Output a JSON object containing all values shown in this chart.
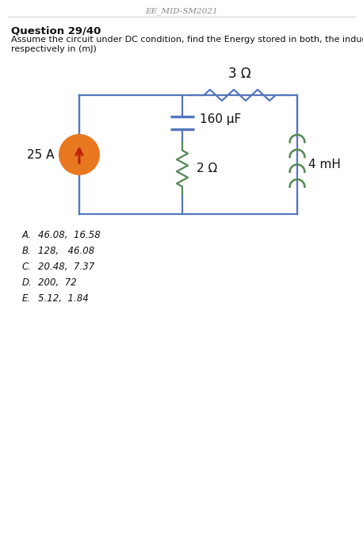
{
  "header": "EE_MID-SM2021",
  "question": "Question 29/40",
  "desc_line1": "Assume the circuit under DC condition, find the Energy stored in both, the inductor, and the capacitor",
  "desc_line2": "respectively in (mJ)",
  "current_source_label": "25 A",
  "resistor_top_label": "3 Ω",
  "capacitor_label": "160 μF",
  "resistor_mid_label": "2 Ω",
  "inductor_label": "4 mH",
  "choices": [
    [
      "A.",
      "46.08,  16.58"
    ],
    [
      "B.",
      "128,   46.08"
    ],
    [
      "C.",
      "20.48,  7.37"
    ],
    [
      "D.",
      "200,  72"
    ],
    [
      "E.",
      "5.12,  1.84"
    ]
  ],
  "bg_color": "#ffffff",
  "line_color": "#5577bb",
  "resistor_color": "#558855",
  "inductor_color": "#558855",
  "source_fill": "#e87820",
  "arrow_color": "#bb2200",
  "text_color": "#111111",
  "header_color": "#888888",
  "hline_color": "#cccccc"
}
